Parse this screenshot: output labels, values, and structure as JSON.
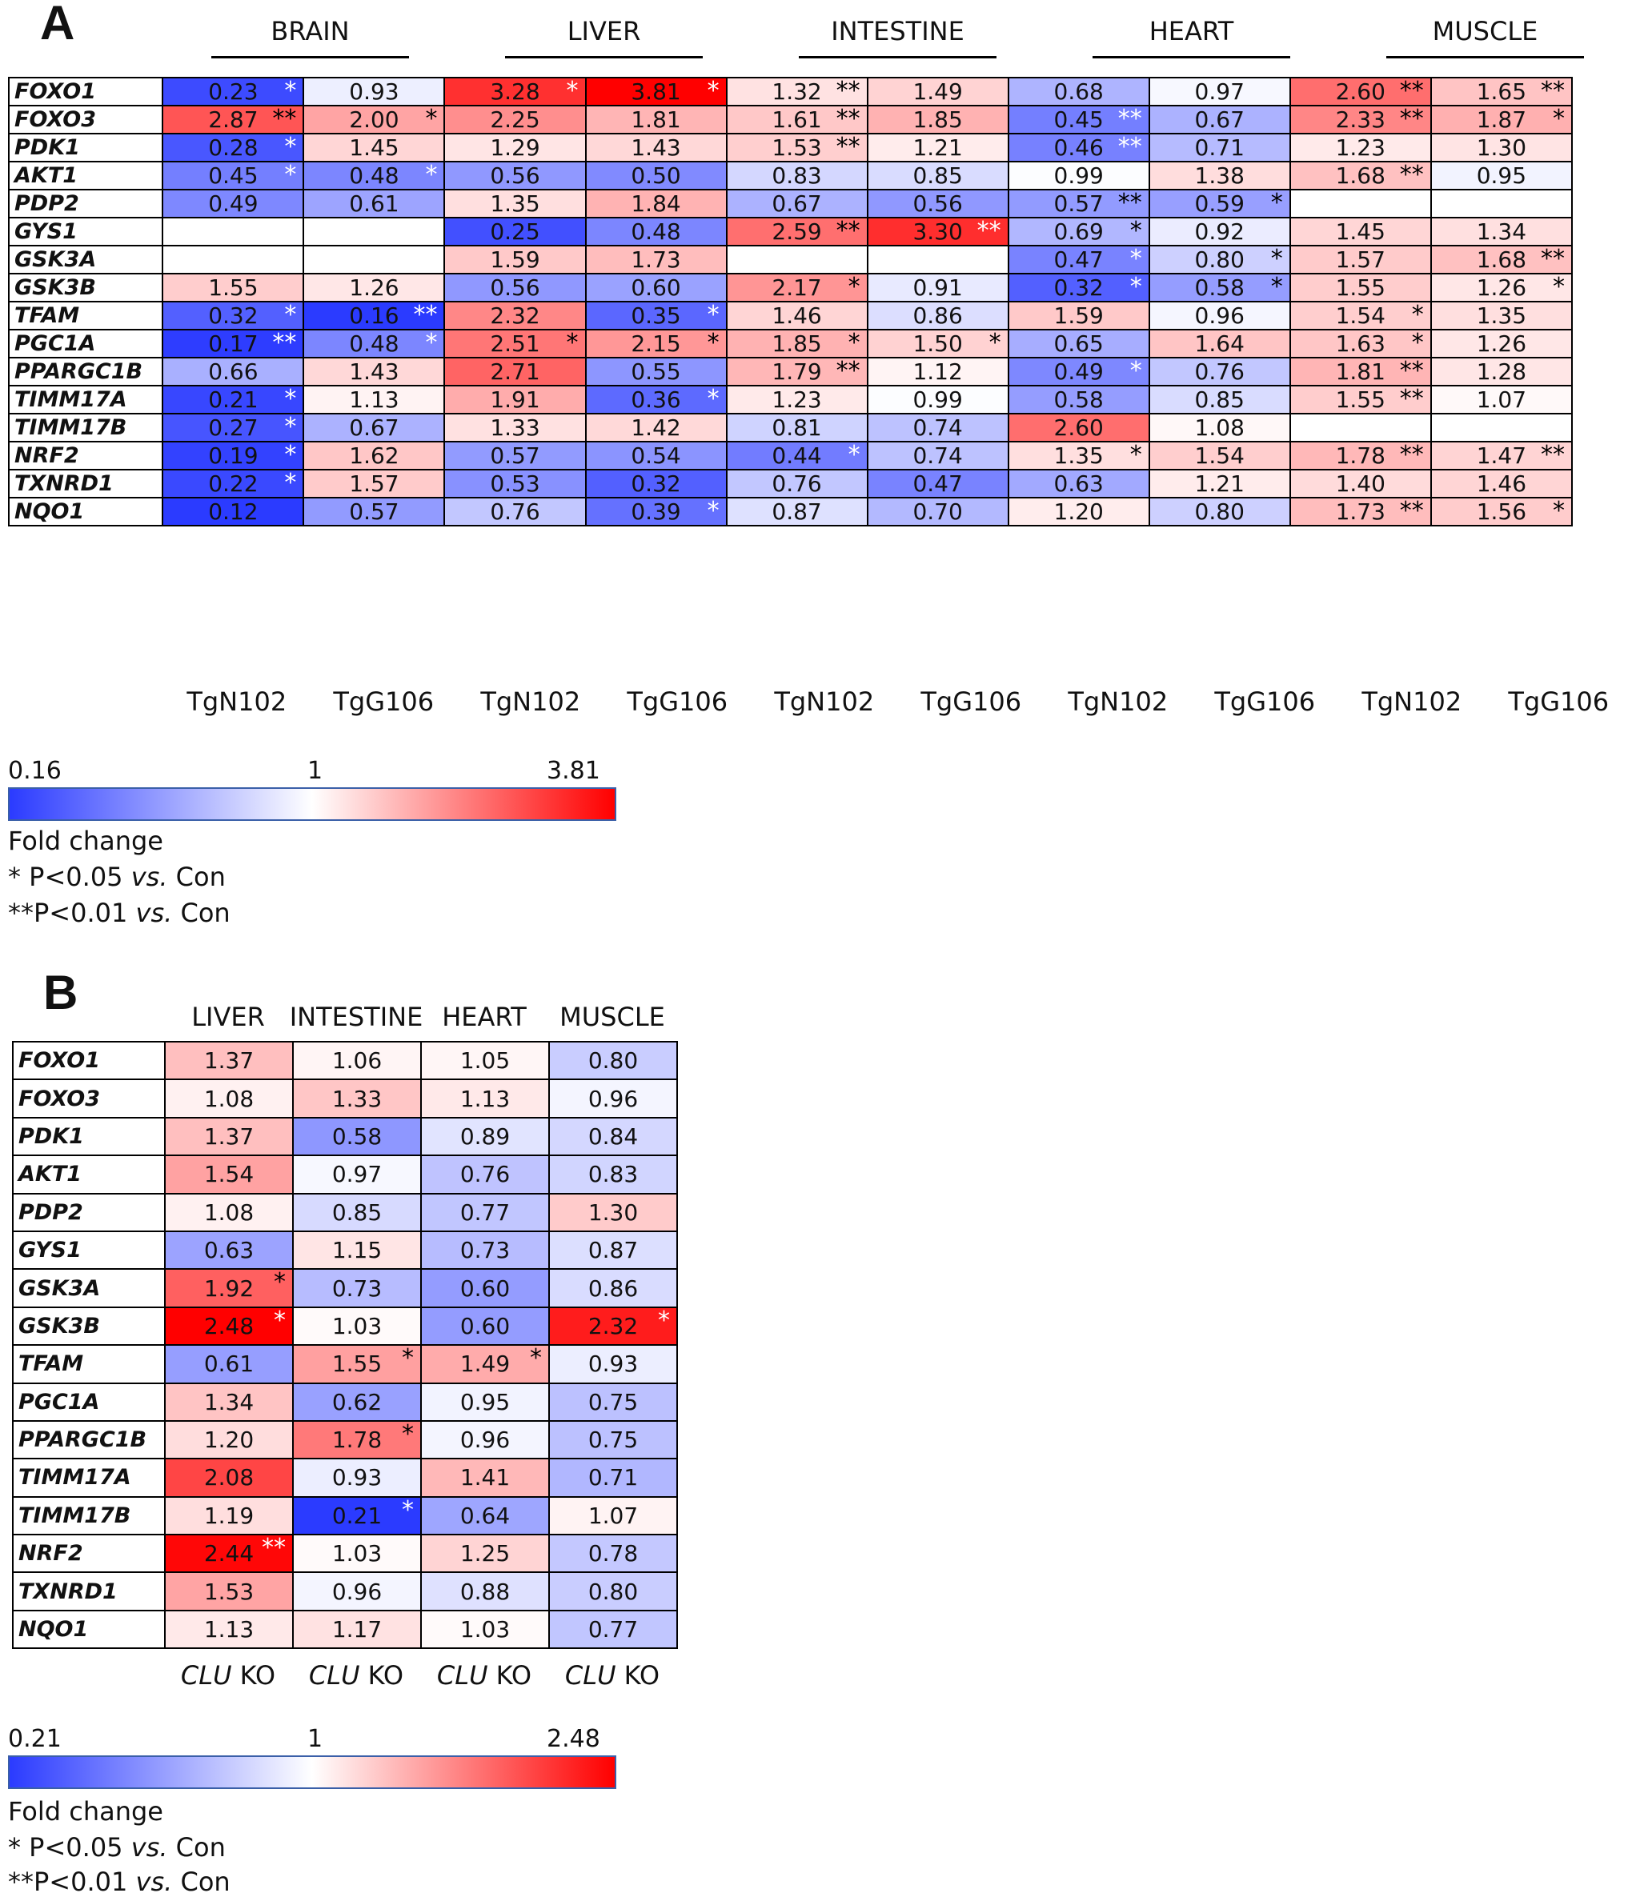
{
  "chart_data": [
    {
      "type": "heatmap",
      "panel": "A",
      "groups": [
        "BRAIN",
        "LIVER",
        "INTESTINE",
        "HEART",
        "MUSCLE"
      ],
      "columns": [
        "TgN102",
        "TgG106",
        "TgN102",
        "TgG106",
        "TgN102",
        "TgG106",
        "TgN102",
        "TgG106",
        "TgN102",
        "TgG106"
      ],
      "genes": [
        "FOXO1",
        "FOXO3",
        "PDK1",
        "AKT1",
        "PDP2",
        "GYS1",
        "GSK3A",
        "GSK3B",
        "TFAM",
        "PGC1A",
        "PPARGC1B",
        "TIMM17A",
        "TIMM17B",
        "NRF2",
        "TXNRD1",
        "NQO1"
      ],
      "values": [
        [
          0.23,
          0.93,
          3.28,
          3.81,
          1.32,
          1.49,
          0.68,
          0.97,
          2.6,
          1.65
        ],
        [
          2.87,
          2.0,
          2.25,
          1.81,
          1.61,
          1.85,
          0.45,
          0.67,
          2.33,
          1.87
        ],
        [
          0.28,
          1.45,
          1.29,
          1.43,
          1.53,
          1.21,
          0.46,
          0.71,
          1.23,
          1.3
        ],
        [
          0.45,
          0.48,
          0.56,
          0.5,
          0.83,
          0.85,
          0.99,
          1.38,
          1.68,
          0.95
        ],
        [
          0.49,
          0.61,
          1.35,
          1.84,
          0.67,
          0.56,
          0.57,
          0.59,
          null,
          null
        ],
        [
          null,
          null,
          0.25,
          0.48,
          2.59,
          3.3,
          0.69,
          0.92,
          1.45,
          1.34
        ],
        [
          null,
          null,
          1.59,
          1.73,
          null,
          null,
          0.47,
          0.8,
          1.57,
          1.68
        ],
        [
          1.55,
          1.26,
          0.56,
          0.6,
          2.17,
          0.91,
          0.32,
          0.58,
          1.55,
          1.26
        ],
        [
          0.32,
          0.16,
          2.32,
          0.35,
          1.46,
          0.86,
          1.59,
          0.96,
          1.54,
          1.35
        ],
        [
          0.17,
          0.48,
          2.51,
          2.15,
          1.85,
          1.5,
          0.65,
          1.64,
          1.63,
          1.26
        ],
        [
          0.66,
          1.43,
          2.71,
          0.55,
          1.79,
          1.12,
          0.49,
          0.76,
          1.81,
          1.28
        ],
        [
          0.21,
          1.13,
          1.91,
          0.36,
          1.23,
          0.99,
          0.58,
          0.85,
          1.55,
          1.07
        ],
        [
          0.27,
          0.67,
          1.33,
          1.42,
          0.81,
          0.74,
          2.6,
          1.08,
          null,
          null
        ],
        [
          0.19,
          1.62,
          0.57,
          0.54,
          0.44,
          0.74,
          1.35,
          1.54,
          1.78,
          1.47
        ],
        [
          0.22,
          1.57,
          0.53,
          0.32,
          0.76,
          0.47,
          0.63,
          1.21,
          1.4,
          1.46
        ],
        [
          0.12,
          0.57,
          0.76,
          0.39,
          0.87,
          0.7,
          1.2,
          0.8,
          1.73,
          1.56
        ]
      ],
      "significance": [
        [
          "*",
          "",
          "*",
          "*",
          "**",
          "",
          "",
          "",
          "**",
          "**"
        ],
        [
          "**",
          "*",
          "",
          "",
          "**",
          "",
          "**",
          "",
          "**",
          "*"
        ],
        [
          "*",
          "",
          "",
          "",
          "**",
          "",
          "**",
          "",
          "",
          ""
        ],
        [
          "*",
          "*",
          "",
          "",
          "",
          "",
          "",
          "",
          "**",
          ""
        ],
        [
          "",
          "",
          "",
          "",
          "",
          "",
          "**",
          "*",
          "",
          ""
        ],
        [
          "",
          "",
          "",
          "",
          "**",
          "**",
          "*",
          "",
          "",
          ""
        ],
        [
          "",
          "",
          "",
          "",
          "",
          "",
          "*",
          "*",
          "",
          "**"
        ],
        [
          "",
          "",
          "",
          "",
          "*",
          "",
          "*",
          "*",
          "",
          "*"
        ],
        [
          "*",
          "**",
          "",
          "*",
          "",
          "",
          "",
          "",
          "*",
          ""
        ],
        [
          "**",
          "*",
          "*",
          "*",
          "*",
          "*",
          "",
          "",
          "*",
          ""
        ],
        [
          "",
          "",
          "",
          "",
          "**",
          "",
          "*",
          "",
          "**",
          ""
        ],
        [
          "*",
          "",
          "",
          "*",
          "",
          "",
          "",
          "",
          "**",
          ""
        ],
        [
          "*",
          "",
          "",
          "",
          "",
          "",
          "",
          "",
          "",
          ""
        ],
        [
          "*",
          "",
          "",
          "",
          "*",
          "",
          "*",
          "",
          "**",
          "**"
        ],
        [
          "*",
          "",
          "",
          "",
          "",
          "",
          "",
          "",
          "",
          ""
        ],
        [
          "",
          "",
          "",
          "*",
          "",
          "",
          "",
          "",
          "**",
          "*"
        ]
      ],
      "scale": {
        "min": 0.16,
        "mid": 1,
        "max": 3.81,
        "label": "Fold change"
      }
    },
    {
      "type": "heatmap",
      "panel": "B",
      "groups": [
        "LIVER",
        "INTESTINE",
        "HEART",
        "MUSCLE"
      ],
      "column_label_italic": "CLU",
      "column_label_rest": " KO",
      "genes": [
        "FOXO1",
        "FOXO3",
        "PDK1",
        "AKT1",
        "PDP2",
        "GYS1",
        "GSK3A",
        "GSK3B",
        "TFAM",
        "PGC1A",
        "PPARGC1B",
        "TIMM17A",
        "TIMM17B",
        "NRF2",
        "TXNRD1",
        "NQO1"
      ],
      "values": [
        [
          1.37,
          1.06,
          1.05,
          0.8
        ],
        [
          1.08,
          1.33,
          1.13,
          0.96
        ],
        [
          1.37,
          0.58,
          0.89,
          0.84
        ],
        [
          1.54,
          0.97,
          0.76,
          0.83
        ],
        [
          1.08,
          0.85,
          0.77,
          1.3
        ],
        [
          0.63,
          1.15,
          0.73,
          0.87
        ],
        [
          1.92,
          0.73,
          0.6,
          0.86
        ],
        [
          2.48,
          1.03,
          0.6,
          2.32
        ],
        [
          0.61,
          1.55,
          1.49,
          0.93
        ],
        [
          1.34,
          0.62,
          0.95,
          0.75
        ],
        [
          1.2,
          1.78,
          0.96,
          0.75
        ],
        [
          2.08,
          0.93,
          1.41,
          0.71
        ],
        [
          1.19,
          0.21,
          0.64,
          1.07
        ],
        [
          2.44,
          1.03,
          1.25,
          0.78
        ],
        [
          1.53,
          0.96,
          0.88,
          0.8
        ],
        [
          1.13,
          1.17,
          1.03,
          0.77
        ]
      ],
      "significance": [
        [
          "",
          "",
          "",
          ""
        ],
        [
          "",
          "",
          "",
          ""
        ],
        [
          "",
          "",
          "",
          ""
        ],
        [
          "",
          "",
          "",
          ""
        ],
        [
          "",
          "",
          "",
          ""
        ],
        [
          "",
          "",
          "",
          ""
        ],
        [
          "*",
          "",
          "",
          ""
        ],
        [
          "*",
          "",
          "",
          "*"
        ],
        [
          "",
          "*",
          "*",
          ""
        ],
        [
          "",
          "",
          "",
          ""
        ],
        [
          "",
          "*",
          "",
          ""
        ],
        [
          "",
          "",
          "",
          ""
        ],
        [
          "",
          "*",
          "",
          ""
        ],
        [
          "**",
          "",
          "",
          ""
        ],
        [
          "",
          "",
          "",
          ""
        ],
        [
          "",
          "",
          "",
          ""
        ]
      ],
      "scale": {
        "min": 0.21,
        "mid": 1,
        "max": 2.48,
        "label": "Fold change"
      }
    }
  ],
  "legend": {
    "sig1_prefix": "* P<0.05 ",
    "sig2_prefix": "**P<0.01 ",
    "vs": "vs.",
    "con": " Con"
  },
  "colors": {
    "low": "#2b3bff",
    "mid": "#ffffff",
    "high": "#ff0000"
  }
}
